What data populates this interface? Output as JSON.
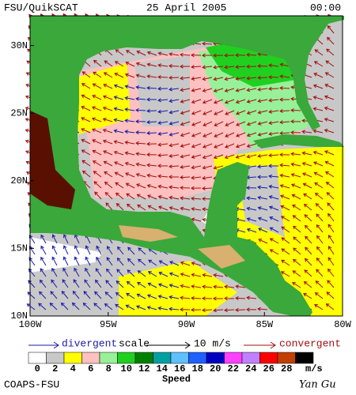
{
  "header": {
    "title": "FSU/QuikSCAT",
    "date": "25 April 2005",
    "time": "00:00"
  },
  "map": {
    "xlim": [
      -100,
      -80
    ],
    "ylim": [
      10,
      32.2
    ],
    "xticks": [
      {
        "value": -100,
        "label": "100W"
      },
      {
        "value": -95,
        "label": "95W"
      },
      {
        "value": -90,
        "label": "90W"
      },
      {
        "value": -85,
        "label": "85W"
      },
      {
        "value": -80,
        "label": "80W"
      }
    ],
    "yticks": [
      {
        "value": 10,
        "label": "10N"
      },
      {
        "value": 15,
        "label": "15N"
      },
      {
        "value": 20,
        "label": "20N"
      },
      {
        "value": 25,
        "label": "25N"
      },
      {
        "value": 30,
        "label": "30N"
      }
    ]
  },
  "legend": {
    "divergent": {
      "label": "divergent",
      "color": "#1a1aaa"
    },
    "scale": "scale",
    "scale_label": "10 m/s",
    "convergent": {
      "label": "convergent",
      "color": "#a01010"
    }
  },
  "colorbar": {
    "title": "Speed",
    "unit": "m/s",
    "ticks": [
      0,
      2,
      4,
      6,
      8,
      10,
      12,
      14,
      16,
      18,
      20,
      22,
      24,
      26,
      28
    ],
    "colors": [
      "#ffffff",
      "#c8c8c8",
      "#ffff00",
      "#ffc0c0",
      "#98f098",
      "#20d020",
      "#008000",
      "#00a0a0",
      "#60c0ff",
      "#2060ff",
      "#0000c0",
      "#ff40ff",
      "#c080ff",
      "#ff0000",
      "#c04000",
      "#000000"
    ]
  },
  "footer": {
    "left": "COAPS-FSU",
    "right": "Yan Gu"
  }
}
